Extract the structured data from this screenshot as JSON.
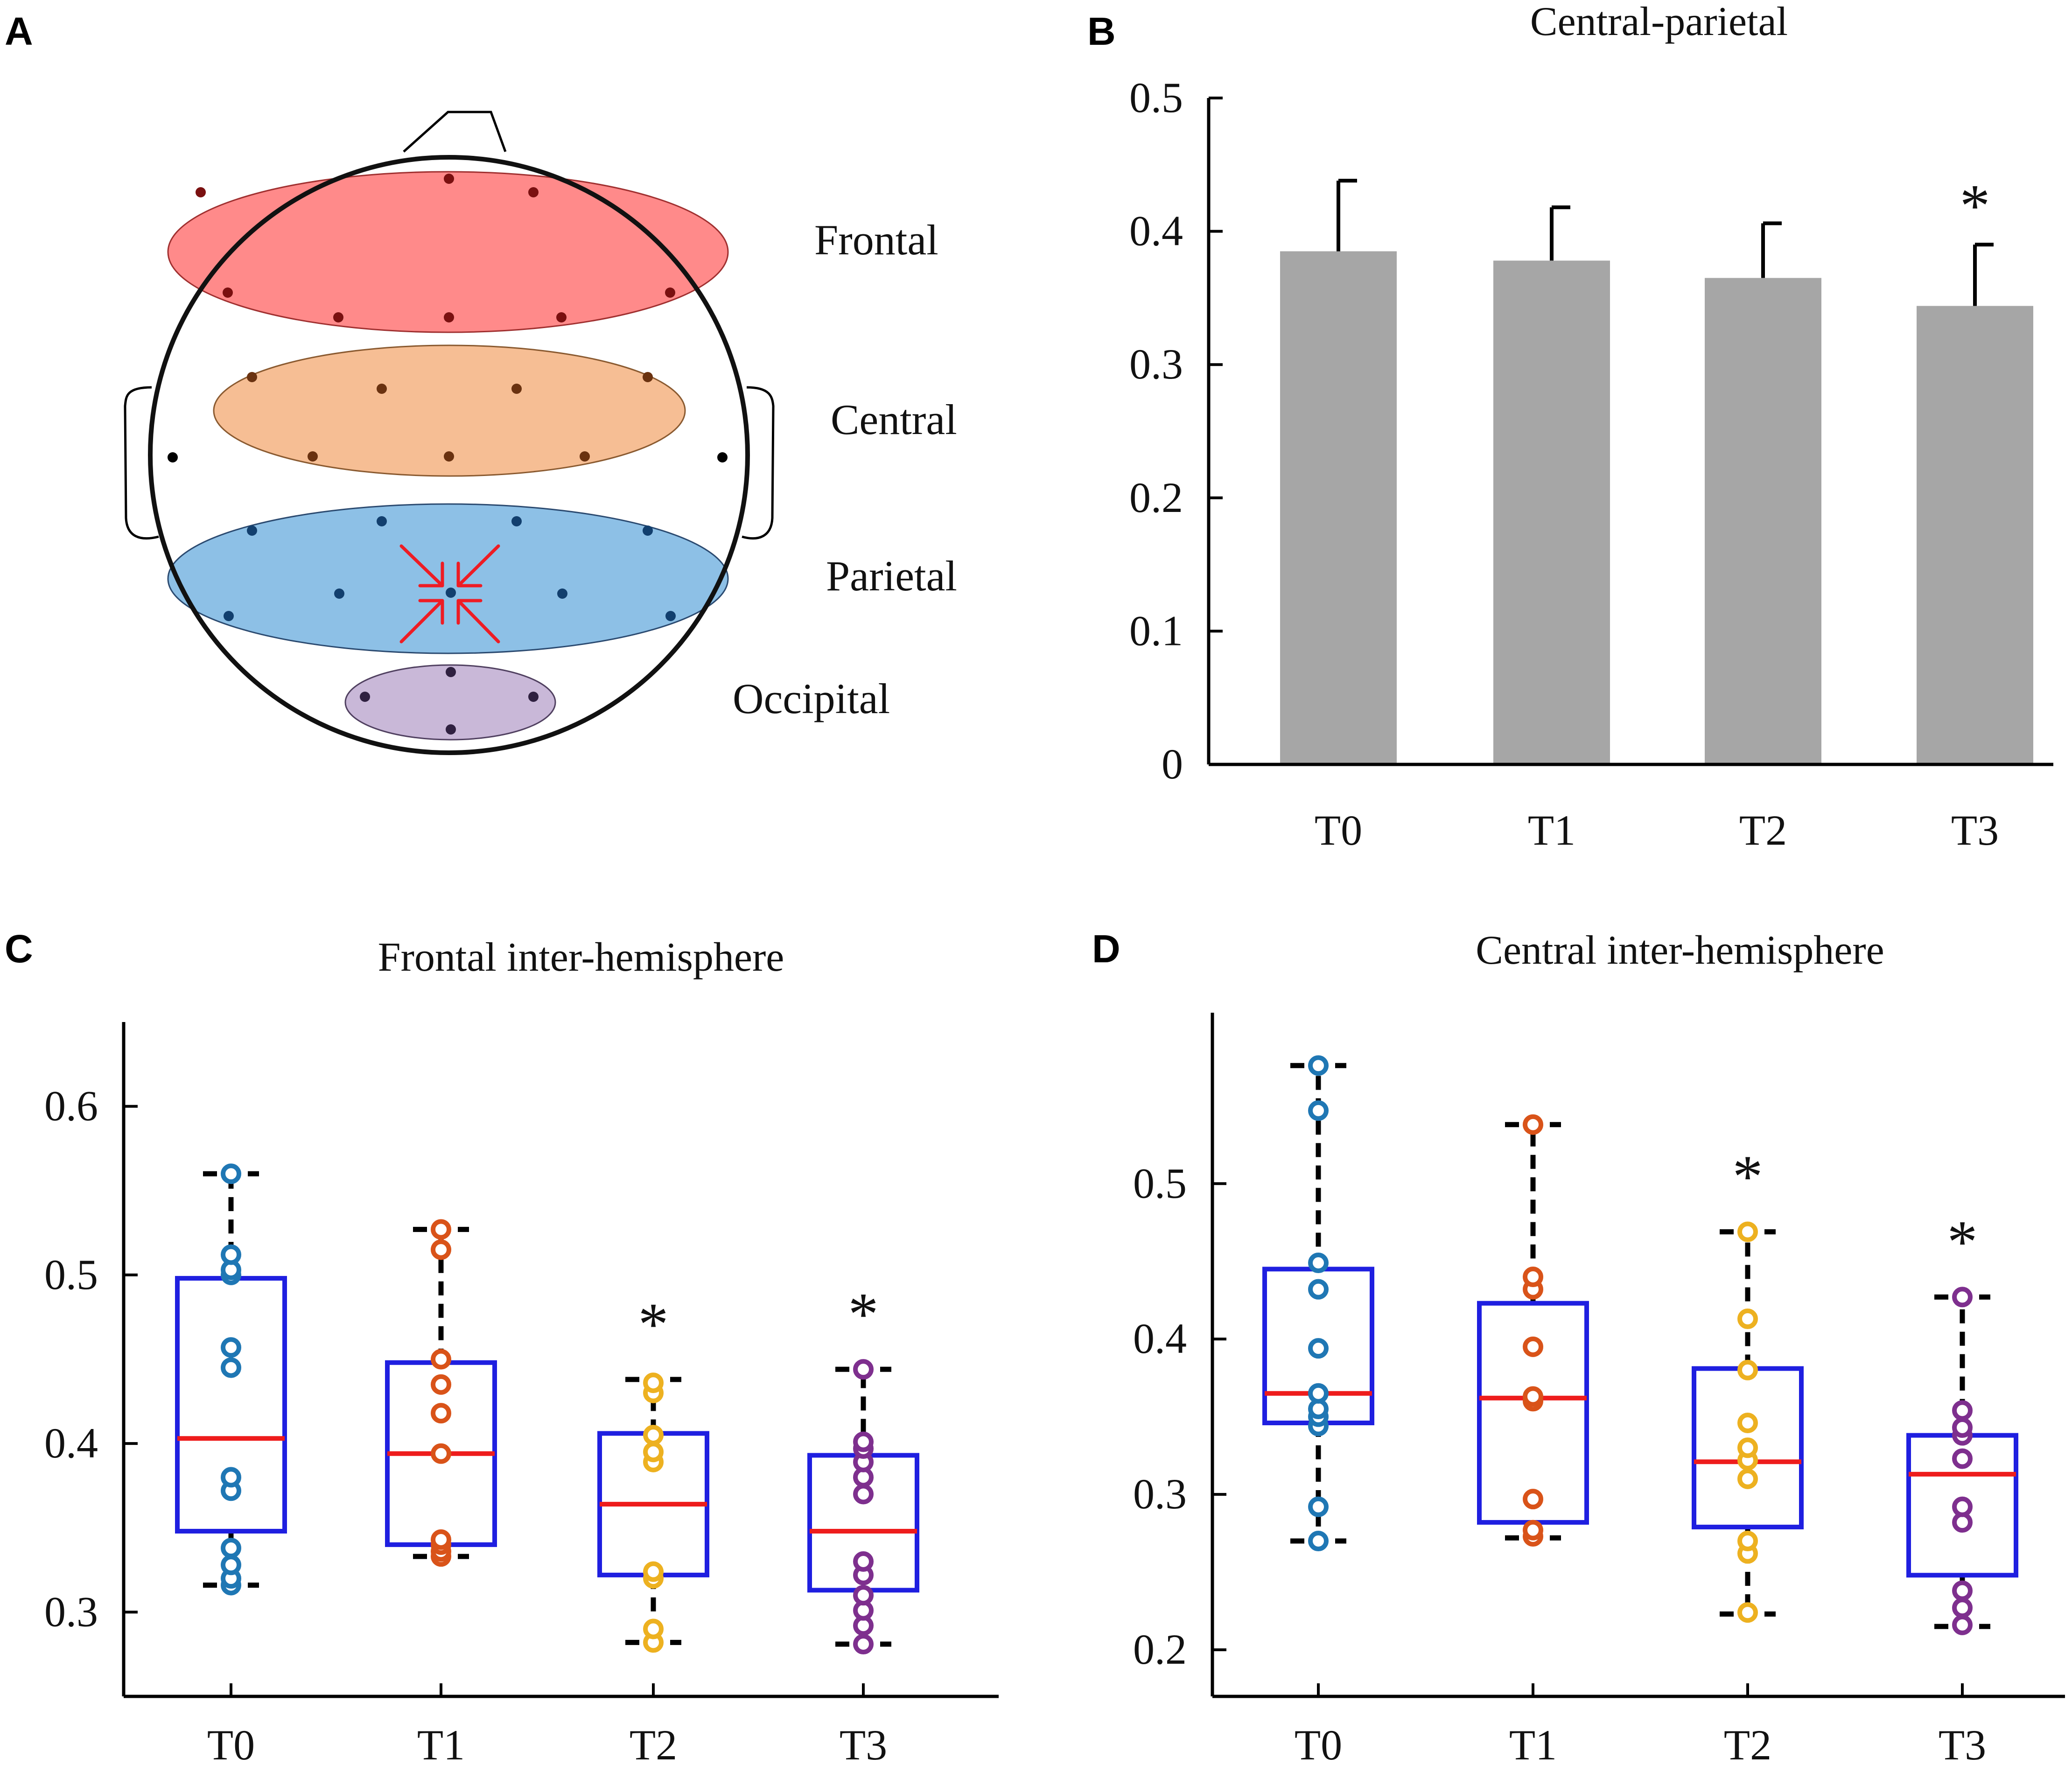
{
  "panels": {
    "A": "A",
    "B": "B",
    "C": "C",
    "D": "D"
  },
  "head_map": {
    "regions": [
      {
        "name": "Frontal",
        "color": "#ff8a8a",
        "electrode_color": "#7a1010"
      },
      {
        "name": "Central",
        "color": "#f6be94",
        "electrode_color": "#6a3210"
      },
      {
        "name": "Parietal",
        "color": "#8dc0e6",
        "electrode_color": "#123f6e"
      },
      {
        "name": "Occipital",
        "color": "#c9b8d8",
        "electrode_color": "#2f2040"
      }
    ],
    "arrow_color": "#ee1c24"
  },
  "chart_data": [
    {
      "type": "bar",
      "title": "Central-parietal",
      "categories": [
        "T0",
        "T1",
        "T2",
        "T3"
      ],
      "values": [
        0.385,
        0.378,
        0.365,
        0.344
      ],
      "error": [
        0.053,
        0.04,
        0.041,
        0.046
      ],
      "ylim": [
        0,
        0.5
      ],
      "yticks": [
        "0",
        "0.1",
        "0.2",
        "0.3",
        "0.4",
        "0.5"
      ],
      "bar_color": "#a6a6a6",
      "significant": [
        "",
        "",
        "",
        "*"
      ]
    },
    {
      "type": "box",
      "title": "Frontal inter-hemisphere",
      "categories": [
        "T0",
        "T1",
        "T2",
        "T3"
      ],
      "ylim": [
        0.25,
        0.65
      ],
      "yticks": [
        "0.3",
        "0.4",
        "0.5",
        "0.6"
      ],
      "box_color": "#1f1fe0",
      "median_color": "#ee1c1c",
      "point_colors": [
        "#1f77b4",
        "#d95319",
        "#edb120",
        "#7e2f8e"
      ],
      "significant": [
        "",
        "",
        "*",
        "*"
      ],
      "boxes": [
        {
          "min": 0.316,
          "q1": 0.348,
          "median": 0.403,
          "q3": 0.498,
          "max": 0.56,
          "points": [
            0.316,
            0.32,
            0.328,
            0.338,
            0.372,
            0.38,
            0.445,
            0.457,
            0.5,
            0.503,
            0.512,
            0.56
          ]
        },
        {
          "min": 0.333,
          "q1": 0.34,
          "median": 0.394,
          "q3": 0.448,
          "max": 0.527,
          "points": [
            0.333,
            0.336,
            0.34,
            0.343,
            0.394,
            0.418,
            0.435,
            0.45,
            0.515,
            0.527
          ]
        },
        {
          "min": 0.282,
          "q1": 0.322,
          "median": 0.364,
          "q3": 0.406,
          "max": 0.438,
          "points": [
            0.282,
            0.29,
            0.32,
            0.324,
            0.389,
            0.395,
            0.405,
            0.43,
            0.436
          ]
        },
        {
          "min": 0.281,
          "q1": 0.313,
          "median": 0.348,
          "q3": 0.393,
          "max": 0.444,
          "points": [
            0.281,
            0.292,
            0.301,
            0.31,
            0.322,
            0.33,
            0.37,
            0.38,
            0.389,
            0.397,
            0.401,
            0.444
          ]
        }
      ]
    },
    {
      "type": "box",
      "title": "Central inter-hemisphere",
      "categories": [
        "T0",
        "T1",
        "T2",
        "T3"
      ],
      "ylim": [
        0.17,
        0.61
      ],
      "yticks": [
        "0.2",
        "0.3",
        "0.4",
        "0.5"
      ],
      "box_color": "#1f1fe0",
      "median_color": "#ee1c1c",
      "point_colors": [
        "#1f77b4",
        "#d95319",
        "#edb120",
        "#7e2f8e"
      ],
      "significant": [
        "",
        "",
        "*",
        "*"
      ],
      "boxes": [
        {
          "min": 0.27,
          "q1": 0.346,
          "median": 0.365,
          "q3": 0.445,
          "max": 0.576,
          "points": [
            0.27,
            0.292,
            0.344,
            0.35,
            0.355,
            0.365,
            0.394,
            0.432,
            0.449,
            0.547,
            0.576
          ]
        },
        {
          "min": 0.272,
          "q1": 0.282,
          "median": 0.362,
          "q3": 0.423,
          "max": 0.538,
          "points": [
            0.273,
            0.277,
            0.297,
            0.36,
            0.363,
            0.395,
            0.432,
            0.44,
            0.538
          ]
        },
        {
          "min": 0.223,
          "q1": 0.279,
          "median": 0.321,
          "q3": 0.381,
          "max": 0.469,
          "points": [
            0.224,
            0.262,
            0.27,
            0.31,
            0.322,
            0.33,
            0.346,
            0.38,
            0.413,
            0.469
          ]
        },
        {
          "min": 0.215,
          "q1": 0.248,
          "median": 0.313,
          "q3": 0.338,
          "max": 0.427,
          "points": [
            0.216,
            0.227,
            0.238,
            0.282,
            0.292,
            0.323,
            0.338,
            0.343,
            0.354,
            0.427
          ]
        }
      ]
    }
  ]
}
